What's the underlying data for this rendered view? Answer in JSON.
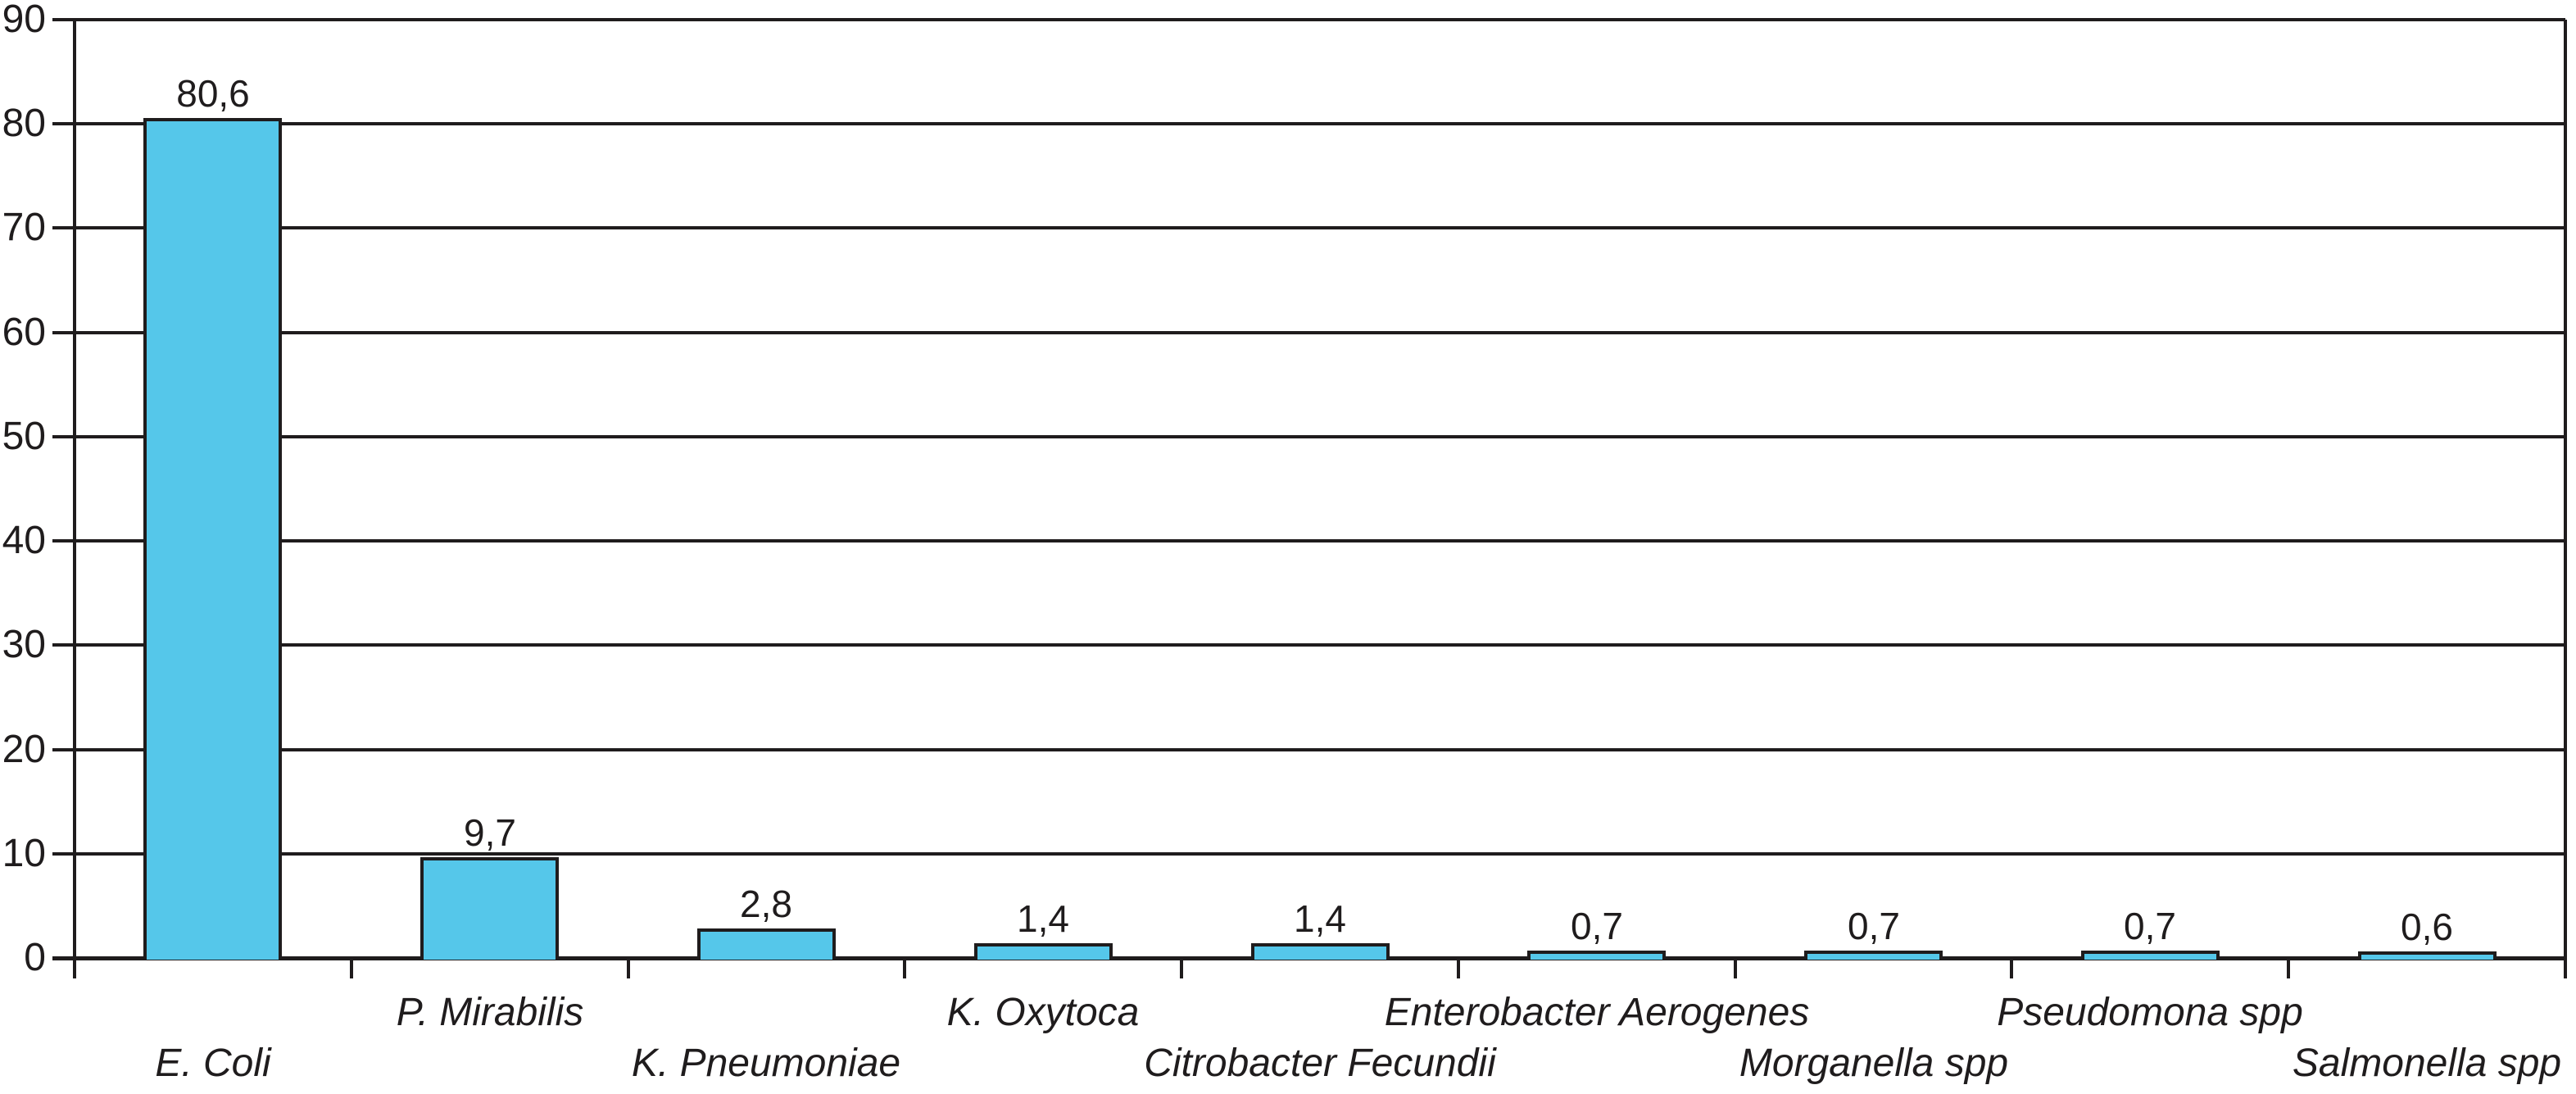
{
  "chart_data": {
    "type": "bar",
    "title": "",
    "xlabel": "",
    "ylabel": "",
    "categories": [
      "E. Coli",
      "P. Mirabilis",
      "K. Pneumoniae",
      "K. Oxytoca",
      "Citrobacter Fecundii",
      "Enterobacter Aerogenes",
      "Morganella spp",
      "Pseudomona spp",
      "Salmonella spp"
    ],
    "values": [
      80.6,
      9.7,
      2.8,
      1.4,
      1.4,
      0.7,
      0.7,
      0.7,
      0.6
    ],
    "value_labels": [
      "80,6",
      "9,7",
      "2,8",
      "1,4",
      "1,4",
      "0,7",
      "0,7",
      "0,7",
      "0,6"
    ],
    "label_rows": [
      "lower",
      "upper",
      "lower",
      "upper",
      "lower",
      "upper",
      "lower",
      "upper",
      "lower"
    ],
    "y_ticks": [
      0,
      10,
      20,
      30,
      40,
      50,
      60,
      70,
      80,
      90
    ],
    "ylim": [
      0,
      90
    ],
    "grid": true,
    "legend": "none",
    "decimal_separator": ",",
    "colors": {
      "bar_fill": "#55C7EA",
      "line": "#1f1c1d",
      "text": "#1f1c1d"
    }
  }
}
